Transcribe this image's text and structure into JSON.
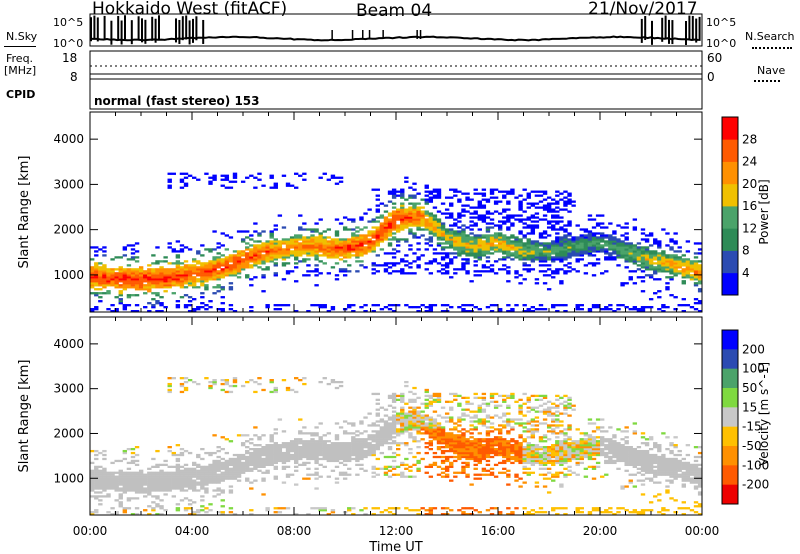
{
  "header": {
    "station": "Hokkaido West (fitACF)",
    "beam": "Beam 04",
    "date": "21/Nov/2017"
  },
  "strip": {
    "nsky_label": "N.Sky",
    "nsearch_label": "N.Search",
    "noise_top_tick": "10^5",
    "noise_bottom_tick": "10^0",
    "freq_label_1": "Freq.",
    "freq_label_2": "[MHz]",
    "freq_top_tick": "18",
    "freq_bottom_tick": "8",
    "nave_label": "Nave",
    "nave_top_tick": "60",
    "nave_bottom_tick": "0",
    "cpid_label": "CPID",
    "cpid_value": "normal (fast stereo) 153"
  },
  "colors": {
    "power_scale": [
      "#0000ff",
      "#2b4bb2",
      "#2e8b57",
      "#4ba36a",
      "#f0c000",
      "#ff9000",
      "#ff5a00",
      "#ff0000"
    ],
    "velocity_scale": [
      "#ee0000",
      "#ff5a00",
      "#ff9000",
      "#ffc000",
      "#c8c8c8",
      "#7fd940",
      "#4ba36a",
      "#2b4bb2",
      "#0000ff"
    ],
    "ground_scatter": "#c0c0c0"
  },
  "chart_data": [
    {
      "type": "heatmap",
      "title": "",
      "xlabel": "Time UT",
      "ylabel": "Slant Range [km]",
      "xlim_hours": [
        0,
        24
      ],
      "ylim_km": [
        180,
        4600
      ],
      "x_ticks": [
        "00:00",
        "04:00",
        "08:00",
        "12:00",
        "16:00",
        "20:00",
        "00:00"
      ],
      "y_ticks": [
        1000,
        2000,
        3000,
        4000
      ],
      "colorbar": {
        "label": "Power [dB]",
        "ticks": [
          4,
          8,
          12,
          16,
          20,
          24,
          28
        ],
        "range": [
          0,
          30
        ]
      },
      "echo_band_center_km": {
        "hours": [
          0,
          1,
          2,
          3,
          4,
          5,
          6,
          7,
          8,
          9,
          10,
          11,
          12,
          13,
          14,
          15,
          16,
          17,
          18,
          19,
          20,
          21,
          22,
          23,
          24
        ],
        "range_km": [
          950,
          900,
          880,
          900,
          1000,
          1100,
          1300,
          1500,
          1600,
          1600,
          1550,
          1700,
          2200,
          2300,
          1800,
          1600,
          1700,
          1500,
          1500,
          1600,
          1700,
          1500,
          1300,
          1200,
          1000
        ]
      },
      "echo_band_peak_power_db": {
        "hours": [
          0,
          2,
          4,
          6,
          8,
          10,
          12,
          14,
          16,
          18,
          20,
          22,
          24
        ],
        "power_db": [
          26,
          28,
          26,
          26,
          22,
          26,
          28,
          18,
          20,
          14,
          12,
          18,
          22
        ]
      }
    },
    {
      "type": "heatmap",
      "title": "",
      "xlabel": "Time UT",
      "ylabel": "Slant Range [km]",
      "xlim_hours": [
        0,
        24
      ],
      "ylim_km": [
        180,
        4600
      ],
      "x_ticks": [
        "00:00",
        "04:00",
        "08:00",
        "12:00",
        "16:00",
        "20:00",
        "00:00"
      ],
      "y_ticks": [
        1000,
        2000,
        3000,
        4000
      ],
      "colorbar": {
        "label": "Velocity [m s^-1]",
        "ticks": [
          200,
          100,
          50,
          15,
          -15,
          -50,
          -100,
          -200
        ],
        "range": [
          -250,
          250
        ]
      }
    }
  ]
}
